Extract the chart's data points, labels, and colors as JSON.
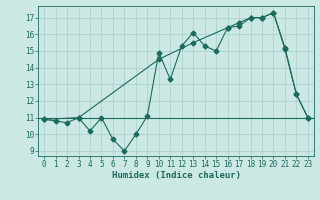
{
  "line1_x": [
    0,
    1,
    2,
    3,
    4,
    5,
    6,
    7,
    8,
    9,
    10,
    11,
    12,
    13,
    14,
    15,
    16,
    17,
    18,
    19,
    20,
    21,
    22,
    23
  ],
  "line1_y": [
    10.9,
    10.8,
    10.7,
    11.0,
    10.2,
    11.0,
    9.7,
    9.0,
    10.0,
    11.1,
    14.9,
    13.3,
    15.3,
    16.1,
    15.3,
    15.0,
    16.4,
    16.5,
    17.0,
    17.0,
    17.3,
    15.1,
    12.4,
    11.0
  ],
  "line3_x": [
    0,
    3,
    10,
    13,
    16,
    17,
    18,
    19,
    20,
    21,
    22,
    23
  ],
  "line3_y": [
    10.9,
    11.0,
    14.5,
    15.5,
    16.4,
    16.7,
    17.0,
    17.0,
    17.3,
    15.2,
    12.4,
    11.0
  ],
  "hline_y": 11.0,
  "line_color": "#1a6b5a",
  "bg_color": "#cce8e4",
  "grid_color": "#aacfcb",
  "xlabel": "Humidex (Indice chaleur)",
  "xlim": [
    -0.5,
    23.5
  ],
  "ylim": [
    8.7,
    17.7
  ],
  "yticks": [
    9,
    10,
    11,
    12,
    13,
    14,
    15,
    16,
    17
  ],
  "xticks": [
    0,
    1,
    2,
    3,
    4,
    5,
    6,
    7,
    8,
    9,
    10,
    11,
    12,
    13,
    14,
    15,
    16,
    17,
    18,
    19,
    20,
    21,
    22,
    23
  ],
  "marker_size": 2.5,
  "linewidth": 0.8,
  "tick_fontsize": 5.5,
  "xlabel_fontsize": 6.5
}
